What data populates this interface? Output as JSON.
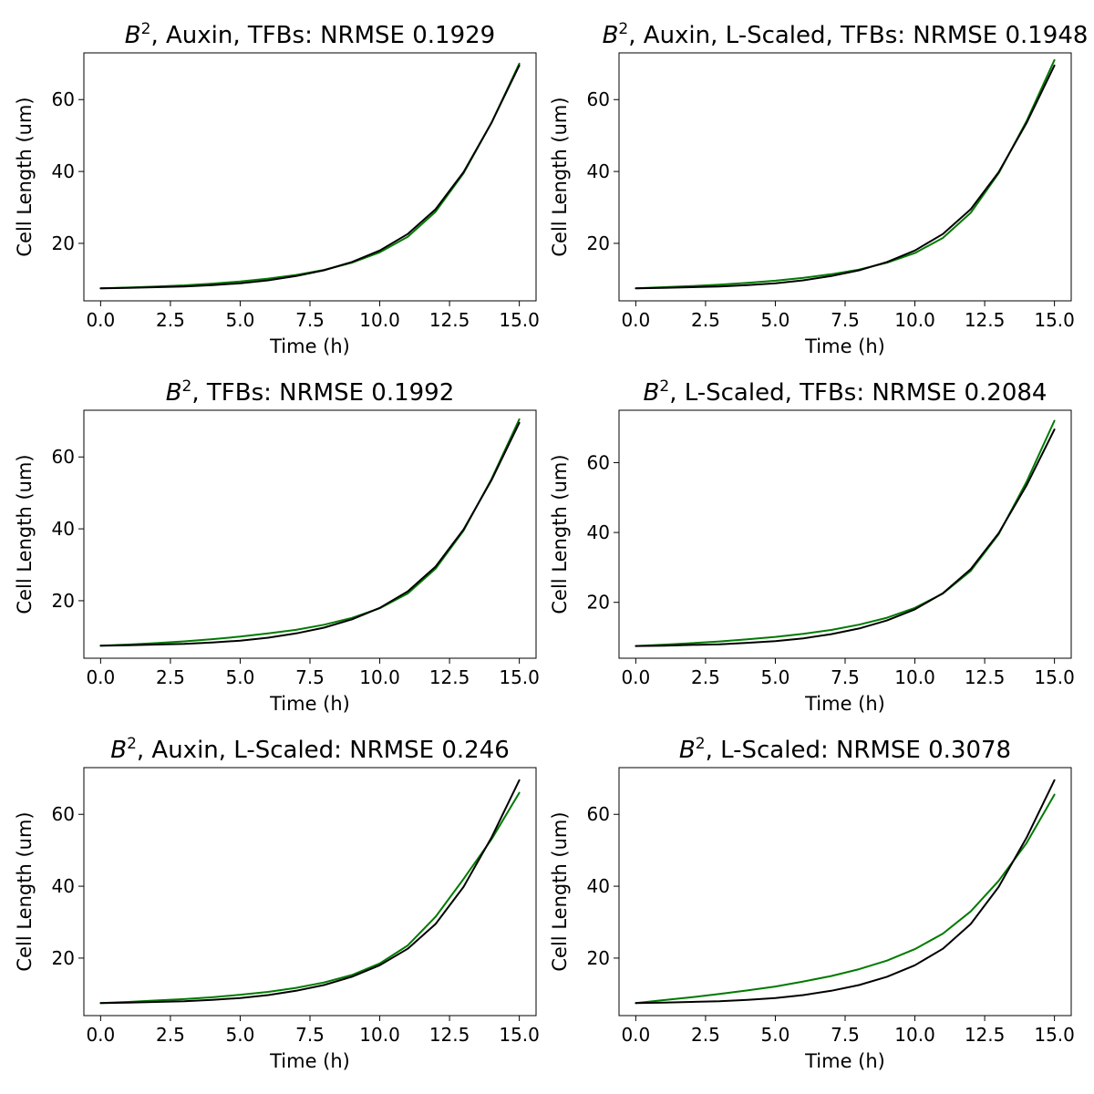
{
  "colors": {
    "model": "#007a00",
    "data": "#000000"
  },
  "chart_data": [
    {
      "type": "line",
      "title_prefix": "B",
      "title_sup": "2",
      "title_rest": ", Auxin, TFBs: NRMSE 0.1929",
      "xlabel": "Time (h)",
      "ylabel": "Cell Length (um)",
      "xlim": [
        -0.6,
        15.6
      ],
      "ylim": [
        4,
        73
      ],
      "xticks": [
        "0.0",
        "2.5",
        "5.0",
        "7.5",
        "10.0",
        "12.5",
        "15.0"
      ],
      "yticks": [
        "20",
        "40",
        "60"
      ],
      "x": [
        0,
        1,
        2,
        3,
        4,
        5,
        6,
        7,
        8,
        9,
        10,
        11,
        12,
        13,
        14,
        15
      ],
      "series": [
        {
          "values": [
            7.5,
            7.7,
            8.0,
            8.3,
            8.8,
            9.4,
            10.2,
            11.2,
            12.6,
            14.6,
            17.5,
            21.8,
            28.8,
            39.5,
            53.5,
            70.0
          ]
        },
        {
          "values": [
            7.5,
            7.6,
            7.8,
            8.0,
            8.4,
            8.9,
            9.7,
            10.9,
            12.5,
            14.8,
            18.0,
            22.6,
            29.5,
            39.8,
            53.5,
            69.5
          ]
        }
      ]
    },
    {
      "type": "line",
      "title_prefix": "B",
      "title_sup": "2",
      "title_rest": ", Auxin, L-Scaled, TFBs: NRMSE 0.1948",
      "xlabel": "Time (h)",
      "ylabel": "Cell Length (um)",
      "xlim": [
        -0.6,
        15.6
      ],
      "ylim": [
        4,
        73
      ],
      "xticks": [
        "0.0",
        "2.5",
        "5.0",
        "7.5",
        "10.0",
        "12.5",
        "15.0"
      ],
      "yticks": [
        "20",
        "40",
        "60"
      ],
      "x": [
        0,
        1,
        2,
        3,
        4,
        5,
        6,
        7,
        8,
        9,
        10,
        11,
        12,
        13,
        14,
        15
      ],
      "series": [
        {
          "values": [
            7.5,
            7.8,
            8.1,
            8.5,
            9.0,
            9.6,
            10.4,
            11.4,
            12.7,
            14.6,
            17.3,
            21.5,
            28.5,
            39.5,
            54.0,
            71.0
          ]
        },
        {
          "values": [
            7.5,
            7.6,
            7.8,
            8.0,
            8.4,
            8.9,
            9.7,
            10.9,
            12.5,
            14.8,
            18.0,
            22.6,
            29.5,
            39.8,
            53.5,
            69.5
          ]
        }
      ]
    },
    {
      "type": "line",
      "title_prefix": "B",
      "title_sup": "2",
      "title_rest": ", TFBs: NRMSE 0.1992",
      "xlabel": "Time (h)",
      "ylabel": "Cell Length (um)",
      "xlim": [
        -0.6,
        15.6
      ],
      "ylim": [
        4,
        73
      ],
      "xticks": [
        "0.0",
        "2.5",
        "5.0",
        "7.5",
        "10.0",
        "12.5",
        "15.0"
      ],
      "yticks": [
        "20",
        "40",
        "60"
      ],
      "x": [
        0,
        1,
        2,
        3,
        4,
        5,
        6,
        7,
        8,
        9,
        10,
        11,
        12,
        13,
        14,
        15
      ],
      "series": [
        {
          "values": [
            7.5,
            7.8,
            8.2,
            8.7,
            9.3,
            10.0,
            10.9,
            11.9,
            13.3,
            15.2,
            17.9,
            22.0,
            28.9,
            39.5,
            53.8,
            70.5
          ]
        },
        {
          "values": [
            7.5,
            7.6,
            7.8,
            8.0,
            8.4,
            8.9,
            9.7,
            10.9,
            12.5,
            14.8,
            18.0,
            22.6,
            29.5,
            39.8,
            53.5,
            69.5
          ]
        }
      ]
    },
    {
      "type": "line",
      "title_prefix": "B",
      "title_sup": "2",
      "title_rest": ", L-Scaled, TFBs: NRMSE 0.2084",
      "xlabel": "Time (h)",
      "ylabel": "Cell Length (um)",
      "xlim": [
        -0.6,
        15.6
      ],
      "ylim": [
        4,
        75
      ],
      "xticks": [
        "0.0",
        "2.5",
        "5.0",
        "7.5",
        "10.0",
        "12.5",
        "15.0"
      ],
      "yticks": [
        "20",
        "40",
        "60"
      ],
      "x": [
        0,
        1,
        2,
        3,
        4,
        5,
        6,
        7,
        8,
        9,
        10,
        11,
        12,
        13,
        14,
        15
      ],
      "series": [
        {
          "values": [
            7.5,
            7.9,
            8.3,
            8.8,
            9.4,
            10.1,
            11.0,
            12.1,
            13.6,
            15.6,
            18.4,
            22.5,
            29.0,
            39.5,
            54.5,
            72.0
          ]
        },
        {
          "values": [
            7.5,
            7.6,
            7.8,
            8.0,
            8.4,
            8.9,
            9.7,
            10.9,
            12.5,
            14.8,
            18.0,
            22.6,
            29.5,
            39.8,
            53.5,
            69.5
          ]
        }
      ]
    },
    {
      "type": "line",
      "title_prefix": "B",
      "title_sup": "2",
      "title_rest": ", Auxin, L-Scaled: NRMSE 0.246",
      "xlabel": "Time (h)",
      "ylabel": "Cell Length (um)",
      "xlim": [
        -0.6,
        15.6
      ],
      "ylim": [
        4,
        73
      ],
      "xticks": [
        "0.0",
        "2.5",
        "5.0",
        "7.5",
        "10.0",
        "12.5",
        "15.0"
      ],
      "yticks": [
        "20",
        "40",
        "60"
      ],
      "x": [
        0,
        1,
        2,
        3,
        4,
        5,
        6,
        7,
        8,
        9,
        10,
        11,
        12,
        13,
        14,
        15
      ],
      "series": [
        {
          "values": [
            7.5,
            7.8,
            8.2,
            8.6,
            9.1,
            9.8,
            10.6,
            11.7,
            13.2,
            15.3,
            18.5,
            23.5,
            31.5,
            42.0,
            53.0,
            66.0
          ]
        },
        {
          "values": [
            7.5,
            7.6,
            7.8,
            8.0,
            8.4,
            8.9,
            9.7,
            10.9,
            12.5,
            14.8,
            18.0,
            22.6,
            29.5,
            39.8,
            53.5,
            69.5
          ]
        }
      ]
    },
    {
      "type": "line",
      "title_prefix": "B",
      "title_sup": "2",
      "title_rest": ", L-Scaled: NRMSE 0.3078",
      "xlabel": "Time (h)",
      "ylabel": "Cell Length (um)",
      "xlim": [
        -0.6,
        15.6
      ],
      "ylim": [
        4,
        73
      ],
      "xticks": [
        "0.0",
        "2.5",
        "5.0",
        "7.5",
        "10.0",
        "12.5",
        "15.0"
      ],
      "yticks": [
        "20",
        "40",
        "60"
      ],
      "x": [
        0,
        1,
        2,
        3,
        4,
        5,
        6,
        7,
        8,
        9,
        10,
        11,
        12,
        13,
        14,
        15
      ],
      "series": [
        {
          "values": [
            7.5,
            8.3,
            9.1,
            10.0,
            11.0,
            12.1,
            13.5,
            15.0,
            16.9,
            19.3,
            22.5,
            26.8,
            33.0,
            41.5,
            52.0,
            65.5
          ]
        },
        {
          "values": [
            7.5,
            7.6,
            7.8,
            8.0,
            8.4,
            8.9,
            9.7,
            10.9,
            12.5,
            14.8,
            18.0,
            22.6,
            29.5,
            39.8,
            53.5,
            69.5
          ]
        }
      ]
    }
  ]
}
